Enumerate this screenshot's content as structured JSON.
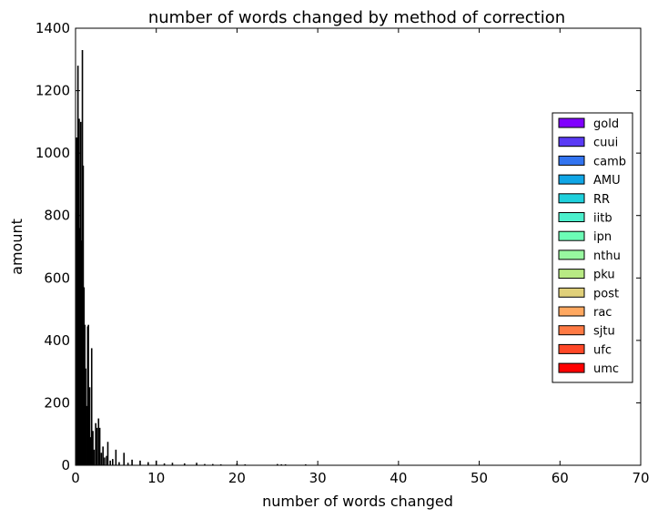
{
  "chart_data": {
    "type": "bar",
    "title": "number of words changed by method of correction",
    "xlabel": "number of words changed",
    "ylabel": "amount",
    "xlim": [
      0,
      70
    ],
    "ylim": [
      0,
      1400
    ],
    "xticks": [
      "0",
      "10",
      "20",
      "30",
      "40",
      "50",
      "60",
      "70"
    ],
    "yticks": [
      "0",
      "200",
      "400",
      "600",
      "800",
      "1000",
      "1200",
      "1400"
    ],
    "legend_position": "center-right",
    "series": [
      {
        "name": "gold",
        "color": "#8000ff"
      },
      {
        "name": "cuui",
        "color": "#5a3af5"
      },
      {
        "name": "camb",
        "color": "#3274f0"
      },
      {
        "name": "AMU",
        "color": "#10a6e6"
      },
      {
        "name": "RR",
        "color": "#1ed0dc"
      },
      {
        "name": "iitb",
        "color": "#4cf0cc"
      },
      {
        "name": "ipn",
        "color": "#6cfcb6"
      },
      {
        "name": "nthu",
        "color": "#98f8a0"
      },
      {
        "name": "pku",
        "color": "#b8ea84"
      },
      {
        "name": "post",
        "color": "#e0d07a"
      },
      {
        "name": "rac",
        "color": "#ffa860"
      },
      {
        "name": "sjtu",
        "color": "#ff7a44"
      },
      {
        "name": "ufc",
        "color": "#ff4828"
      },
      {
        "name": "umc",
        "color": "#ff0000"
      }
    ],
    "bars": [
      {
        "x": 0.05,
        "y": 810
      },
      {
        "x": 0.15,
        "y": 1050
      },
      {
        "x": 0.25,
        "y": 640
      },
      {
        "x": 0.3,
        "y": 1280
      },
      {
        "x": 0.35,
        "y": 980
      },
      {
        "x": 0.45,
        "y": 1110
      },
      {
        "x": 0.55,
        "y": 760
      },
      {
        "x": 0.65,
        "y": 1100
      },
      {
        "x": 0.75,
        "y": 720
      },
      {
        "x": 0.85,
        "y": 1330
      },
      {
        "x": 0.95,
        "y": 960
      },
      {
        "x": 1.05,
        "y": 570
      },
      {
        "x": 1.15,
        "y": 450
      },
      {
        "x": 1.25,
        "y": 310
      },
      {
        "x": 1.35,
        "y": 190
      },
      {
        "x": 1.5,
        "y": 445
      },
      {
        "x": 1.6,
        "y": 450
      },
      {
        "x": 1.75,
        "y": 250
      },
      {
        "x": 1.85,
        "y": 90
      },
      {
        "x": 2.0,
        "y": 375
      },
      {
        "x": 2.15,
        "y": 110
      },
      {
        "x": 2.3,
        "y": 50
      },
      {
        "x": 2.5,
        "y": 135
      },
      {
        "x": 2.65,
        "y": 120
      },
      {
        "x": 2.85,
        "y": 150
      },
      {
        "x": 3.0,
        "y": 120
      },
      {
        "x": 3.2,
        "y": 40
      },
      {
        "x": 3.4,
        "y": 60
      },
      {
        "x": 3.6,
        "y": 25
      },
      {
        "x": 3.85,
        "y": 30
      },
      {
        "x": 4.0,
        "y": 75
      },
      {
        "x": 4.3,
        "y": 15
      },
      {
        "x": 4.6,
        "y": 20
      },
      {
        "x": 5.0,
        "y": 50
      },
      {
        "x": 5.4,
        "y": 10
      },
      {
        "x": 6.0,
        "y": 40
      },
      {
        "x": 6.5,
        "y": 8
      },
      {
        "x": 7.0,
        "y": 18
      },
      {
        "x": 8.0,
        "y": 15
      },
      {
        "x": 9.0,
        "y": 10
      },
      {
        "x": 10.0,
        "y": 15
      },
      {
        "x": 11.0,
        "y": 6
      },
      {
        "x": 12.0,
        "y": 8
      },
      {
        "x": 13.5,
        "y": 6
      },
      {
        "x": 15.0,
        "y": 8
      },
      {
        "x": 16.0,
        "y": 4
      },
      {
        "x": 17.0,
        "y": 4
      },
      {
        "x": 18.0,
        "y": 3
      },
      {
        "x": 20.0,
        "y": 6
      },
      {
        "x": 21.0,
        "y": 3
      },
      {
        "x": 25.0,
        "y": 4
      },
      {
        "x": 25.5,
        "y": 3
      },
      {
        "x": 26.0,
        "y": 3
      },
      {
        "x": 28.5,
        "y": 3
      }
    ]
  }
}
